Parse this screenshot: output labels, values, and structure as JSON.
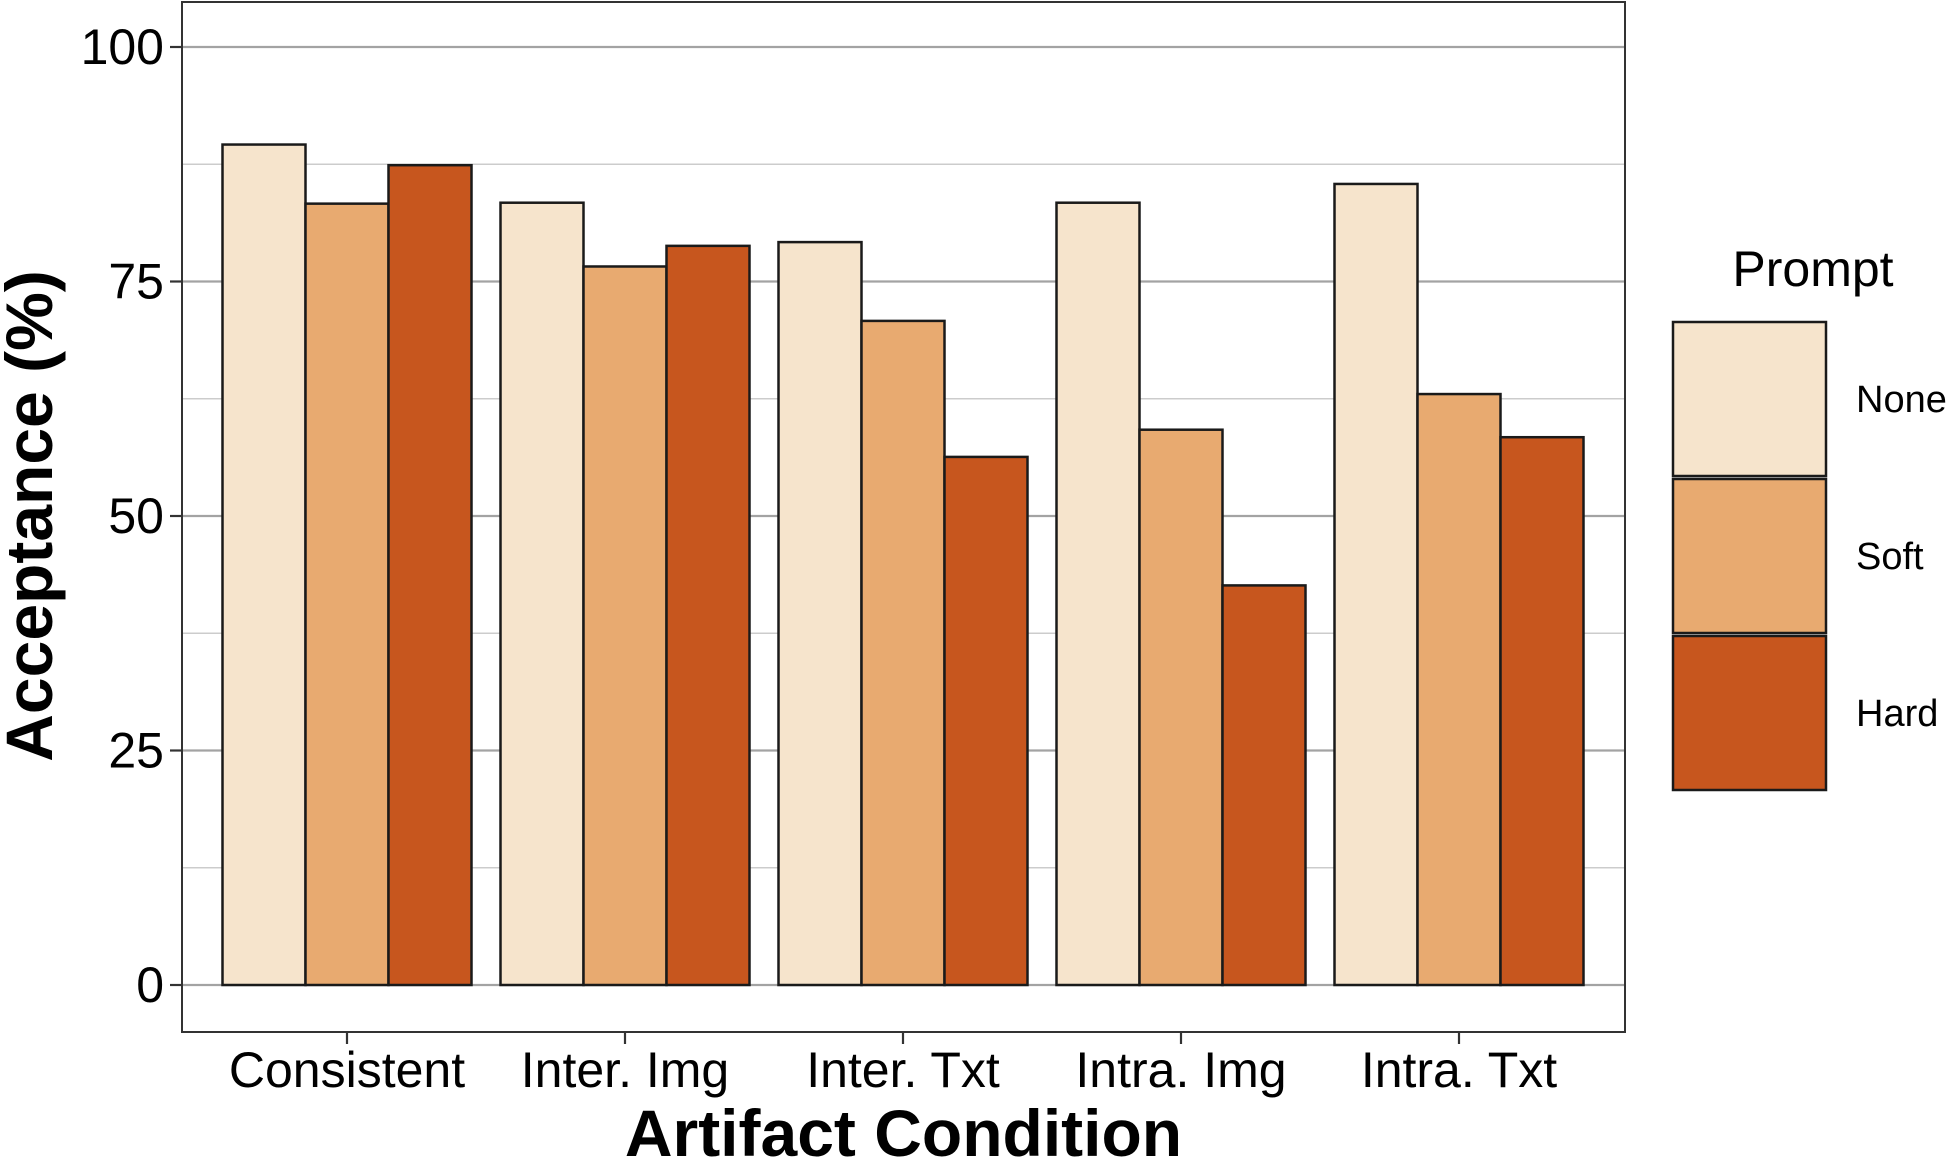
{
  "chart_data": {
    "type": "bar",
    "title": "",
    "xlabel": "Artifact Condition",
    "ylabel": "Acceptance (%)",
    "categories": [
      "Consistent",
      "Inter. Img",
      "Inter. Txt",
      "Intra. Img",
      "Intra. Txt"
    ],
    "series": [
      {
        "name": "None",
        "color": "#F6E4CC",
        "values": [
          89.6,
          83.4,
          79.2,
          83.4,
          85.4
        ]
      },
      {
        "name": "Soft",
        "color": "#E8AA70",
        "values": [
          83.3,
          76.6,
          70.8,
          59.2,
          63.0
        ]
      },
      {
        "name": "Hard",
        "color": "#C7561E",
        "values": [
          87.4,
          78.8,
          56.3,
          42.6,
          58.4
        ]
      }
    ],
    "ylim": [
      0,
      100
    ],
    "yticks": [
      0,
      25,
      50,
      75,
      100
    ],
    "grid": true,
    "legend": {
      "title": "Prompt",
      "position": "right"
    }
  }
}
